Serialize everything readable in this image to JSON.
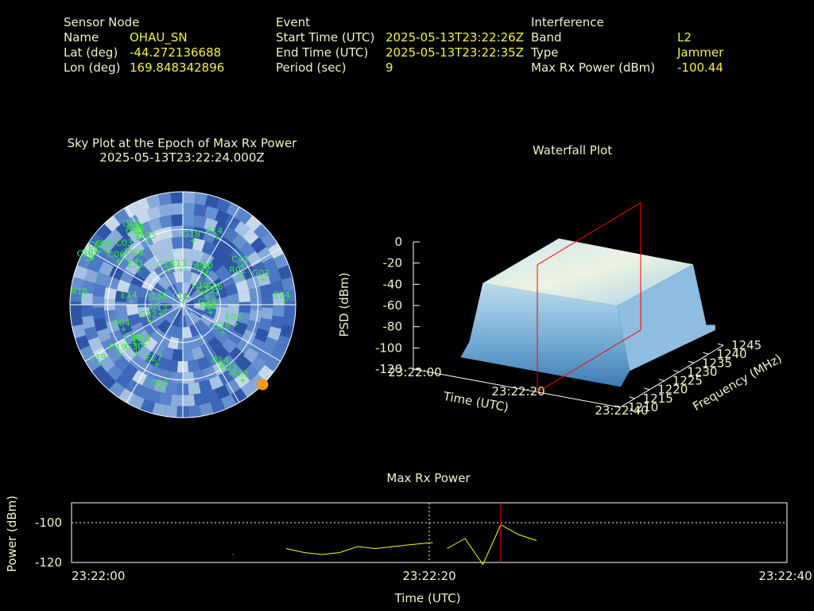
{
  "header": {
    "sensor": {
      "title": "Sensor Node",
      "rows": [
        {
          "label": "Name",
          "value": "OHAU_SN"
        },
        {
          "label": "Lat (deg)",
          "value": "-44.272136688"
        },
        {
          "label": "Lon (deg)",
          "value": "169.848342896"
        }
      ]
    },
    "event": {
      "title": "Event",
      "rows": [
        {
          "label": "Start Time (UTC)",
          "value": "2025-05-13T23:22:26Z"
        },
        {
          "label": "End Time (UTC)",
          "value": "2025-05-13T23:22:35Z"
        },
        {
          "label": "Period (sec)",
          "value": "9"
        }
      ]
    },
    "interference": {
      "title": "Interference",
      "rows": [
        {
          "label": "Band",
          "value": "L2"
        },
        {
          "label": "Type",
          "value": "Jammer"
        },
        {
          "label": "Max Rx Power (dBm)",
          "value": "-100.44"
        }
      ]
    }
  },
  "colors": {
    "label": "#f2f2c8",
    "value": "#f5f04a",
    "sat": "#33ee33",
    "marker": "#ff0000",
    "line": "#ffff00",
    "jammer": "#ff9900"
  },
  "chart_data": [
    {
      "type": "scatter",
      "name": "sky-plot",
      "title": "Sky Plot at the Epoch of Max Rx Power",
      "subtitle": "2025-05-13T23:22:24.000Z",
      "jammer_azimuth_deg": 135,
      "satellites": [
        {
          "id": "C10",
          "az": -34,
          "el": 18
        },
        {
          "id": "C08",
          "az": -33,
          "el": 22
        },
        {
          "id": "J195",
          "az": -30,
          "el": 32
        },
        {
          "id": "G18",
          "az": 8,
          "el": 38
        },
        {
          "id": "E14",
          "az": 26,
          "el": 30
        },
        {
          "id": "C09",
          "az": -55,
          "el": 14
        },
        {
          "id": "C39",
          "az": -46,
          "el": 38
        },
        {
          "id": "E31",
          "az": -53,
          "el": 44
        },
        {
          "id": "C03",
          "az": -46,
          "el": 26
        },
        {
          "id": "C40",
          "az": -35,
          "el": 24
        },
        {
          "id": "C06",
          "az": -56,
          "el": 27
        },
        {
          "id": "C05",
          "az": -58,
          "el": 10
        },
        {
          "id": "C05",
          "az": -63,
          "el": 8
        },
        {
          "id": "C16",
          "az": -65,
          "el": 5
        },
        {
          "id": "C15",
          "az": -25,
          "el": 60
        },
        {
          "id": "E13",
          "az": -5,
          "el": 62
        },
        {
          "id": "E36",
          "az": 33,
          "el": 60
        },
        {
          "id": "E30",
          "az": 35,
          "el": 58
        },
        {
          "id": "C41",
          "az": 56,
          "el": 34
        },
        {
          "id": "R01",
          "az": 63,
          "el": 40
        },
        {
          "id": "G02",
          "az": 72,
          "el": 24
        },
        {
          "id": "E24",
          "az": 88,
          "el": 10
        },
        {
          "id": "R18",
          "az": -86,
          "el": 8
        },
        {
          "id": "E14",
          "az": -86,
          "el": 48
        },
        {
          "id": "J136",
          "az": -85,
          "el": 70
        },
        {
          "id": "C25",
          "az": 70,
          "el": 70
        },
        {
          "id": "C19",
          "az": 55,
          "el": 72
        },
        {
          "id": "E06",
          "az": 70,
          "el": 62
        },
        {
          "id": "G23",
          "az": 97,
          "el": 70
        },
        {
          "id": "R08",
          "az": 105,
          "el": 68
        },
        {
          "id": "E04",
          "az": 110,
          "el": 46
        },
        {
          "id": "G28",
          "az": 125,
          "el": 52
        },
        {
          "id": "L14",
          "az": -22,
          "el": 88
        },
        {
          "id": "G13",
          "az": -110,
          "el": 70
        },
        {
          "id": "G32",
          "az": -115,
          "el": 60
        },
        {
          "id": "R04",
          "az": -112,
          "el": 38
        },
        {
          "id": "C26",
          "az": -128,
          "el": 40
        },
        {
          "id": "G30",
          "az": -135,
          "el": 36
        },
        {
          "id": "R28",
          "az": -135,
          "el": 45
        },
        {
          "id": "R19",
          "az": -127,
          "el": 26
        },
        {
          "id": "C19",
          "az": -125,
          "el": 8
        },
        {
          "id": "E27",
          "az": -155,
          "el": 38
        },
        {
          "id": "G06",
          "az": -165,
          "el": 20
        },
        {
          "id": "R14",
          "az": 148,
          "el": 32
        },
        {
          "id": "G25",
          "az": 146,
          "el": 24
        },
        {
          "id": "R31",
          "az": 142,
          "el": 14
        }
      ]
    },
    {
      "type": "area",
      "name": "waterfall",
      "title": "Waterfall Plot",
      "xlabel": "Time (UTC)",
      "ylabel": "Frequency (MHz)",
      "zlabel": "PSD (dBm)",
      "time_ticks": [
        "23:22:00",
        "23:22:20",
        "23:22:40"
      ],
      "freq_ticks": [
        1210,
        1215,
        1220,
        1225,
        1230,
        1235,
        1240,
        1245
      ],
      "psd_ticks": [
        0,
        -20,
        -40,
        -60,
        -80,
        -100,
        -120
      ],
      "psd_range": [
        -120,
        0
      ],
      "time_range_s": [
        0,
        40
      ],
      "freq_range": [
        1210,
        1245
      ],
      "marker_time_s": 24,
      "jamming_band_mhz": [
        1215,
        1240
      ],
      "noise_floor_dbm": -105,
      "jammed_level_dbm": -40
    },
    {
      "type": "line",
      "name": "max-rx-power",
      "title": "Max Rx Power",
      "xlabel": "Time (UTC)",
      "ylabel": "Power (dBm)",
      "x_ticks": [
        "23:22:00",
        "23:22:20",
        "23:22:40"
      ],
      "y_ticks": [
        -100,
        -120
      ],
      "xlim": [
        0,
        40
      ],
      "ylim": [
        -120,
        -90
      ],
      "ref_y": -100,
      "mid_x": 20,
      "marker_x": 24,
      "segments": [
        [
          [
            9,
            -116
          ],
          [
            9.05,
            -116
          ]
        ],
        [
          [
            12,
            -113
          ],
          [
            13,
            -115
          ],
          [
            14,
            -116
          ],
          [
            15,
            -115
          ],
          [
            16,
            -112
          ],
          [
            17,
            -113
          ],
          [
            18,
            -112
          ],
          [
            19,
            -111
          ],
          [
            20.2,
            -110
          ]
        ],
        [
          [
            21,
            -113
          ],
          [
            22,
            -108
          ],
          [
            23,
            -121
          ],
          [
            24,
            -101
          ],
          [
            25,
            -106
          ],
          [
            26,
            -109
          ]
        ]
      ]
    }
  ]
}
